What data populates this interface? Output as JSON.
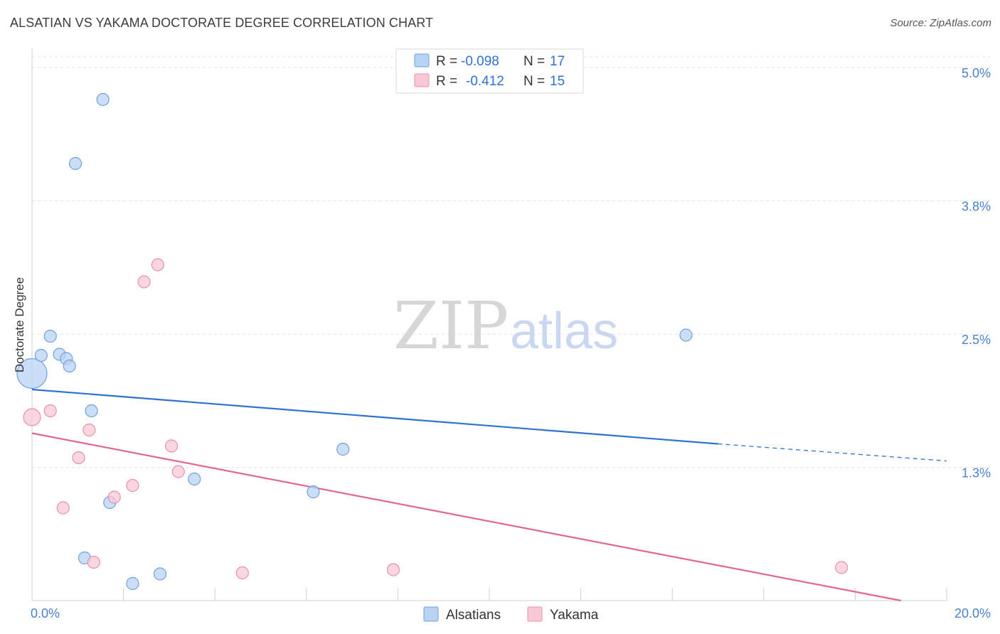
{
  "title": "ALSATIAN VS YAKAMA DOCTORATE DEGREE CORRELATION CHART",
  "source": "Source: ZipAtlas.com",
  "watermark": {
    "zip": "ZIP",
    "atlas": "atlas"
  },
  "colors": {
    "alsatians_fill": "#b9d3f5",
    "alsatians_stroke": "#6f9fe0",
    "alsatians_line": "#2f72d2",
    "yakama_fill": "#f8c8d6",
    "yakama_stroke": "#e890aa",
    "yakama_line": "#e06890",
    "tick_text": "#4a7fd0"
  },
  "legend": {
    "rows": [
      {
        "r_label": "R =",
        "r_value": "-0.098",
        "n_label": "N =",
        "n_value": "17"
      },
      {
        "r_label": "R =",
        "r_value": "-0.412",
        "n_label": "N =",
        "n_value": "15"
      }
    ]
  },
  "bottom_legend": {
    "alsatians": "Alsatians",
    "yakama": "Yakama"
  },
  "chart_data": {
    "type": "scatter",
    "title": "ALSATIAN VS YAKAMA DOCTORATE DEGREE CORRELATION CHART",
    "xlabel": "",
    "ylabel": "Doctorate Degree",
    "xlim": [
      0,
      20
    ],
    "ylim": [
      0,
      5.1
    ],
    "x_tick_labels": [
      "0.0%",
      "20.0%"
    ],
    "y_ticks": [
      1.25,
      2.5,
      3.75,
      5.0
    ],
    "y_tick_labels": [
      "1.3%",
      "2.5%",
      "3.8%",
      "5.0%"
    ],
    "series": [
      {
        "name": "Alsatians",
        "points": [
          {
            "x": 0.0,
            "y": 2.13,
            "size": "large"
          },
          {
            "x": 0.2,
            "y": 2.3
          },
          {
            "x": 0.4,
            "y": 2.48
          },
          {
            "x": 0.6,
            "y": 2.31
          },
          {
            "x": 0.75,
            "y": 2.27
          },
          {
            "x": 0.82,
            "y": 2.2
          },
          {
            "x": 0.95,
            "y": 4.1
          },
          {
            "x": 1.15,
            "y": 0.4
          },
          {
            "x": 1.3,
            "y": 1.78
          },
          {
            "x": 1.55,
            "y": 4.7
          },
          {
            "x": 1.7,
            "y": 0.92
          },
          {
            "x": 2.2,
            "y": 0.16
          },
          {
            "x": 2.8,
            "y": 0.25
          },
          {
            "x": 3.55,
            "y": 1.14
          },
          {
            "x": 6.15,
            "y": 1.02
          },
          {
            "x": 6.8,
            "y": 1.42
          },
          {
            "x": 14.3,
            "y": 2.49
          }
        ],
        "trend": {
          "x1": 0,
          "y1": 1.98,
          "x2": 15.0,
          "y2": 1.47,
          "dashed_to_x": 20.0,
          "dashed_to_y": 1.31
        }
      },
      {
        "name": "Yakama",
        "points": [
          {
            "x": 0.0,
            "y": 1.72,
            "size": "medium"
          },
          {
            "x": 0.4,
            "y": 1.78
          },
          {
            "x": 0.68,
            "y": 0.87
          },
          {
            "x": 1.02,
            "y": 1.34
          },
          {
            "x": 1.25,
            "y": 1.6
          },
          {
            "x": 1.35,
            "y": 0.36
          },
          {
            "x": 1.8,
            "y": 0.97
          },
          {
            "x": 2.2,
            "y": 1.08
          },
          {
            "x": 2.45,
            "y": 2.99
          },
          {
            "x": 2.75,
            "y": 3.15
          },
          {
            "x": 3.05,
            "y": 1.45
          },
          {
            "x": 3.2,
            "y": 1.21
          },
          {
            "x": 4.6,
            "y": 0.26
          },
          {
            "x": 7.9,
            "y": 0.29
          },
          {
            "x": 17.7,
            "y": 0.31
          }
        ],
        "trend": {
          "x1": 0,
          "y1": 1.57,
          "x2": 19.0,
          "y2": 0.0
        }
      }
    ]
  }
}
